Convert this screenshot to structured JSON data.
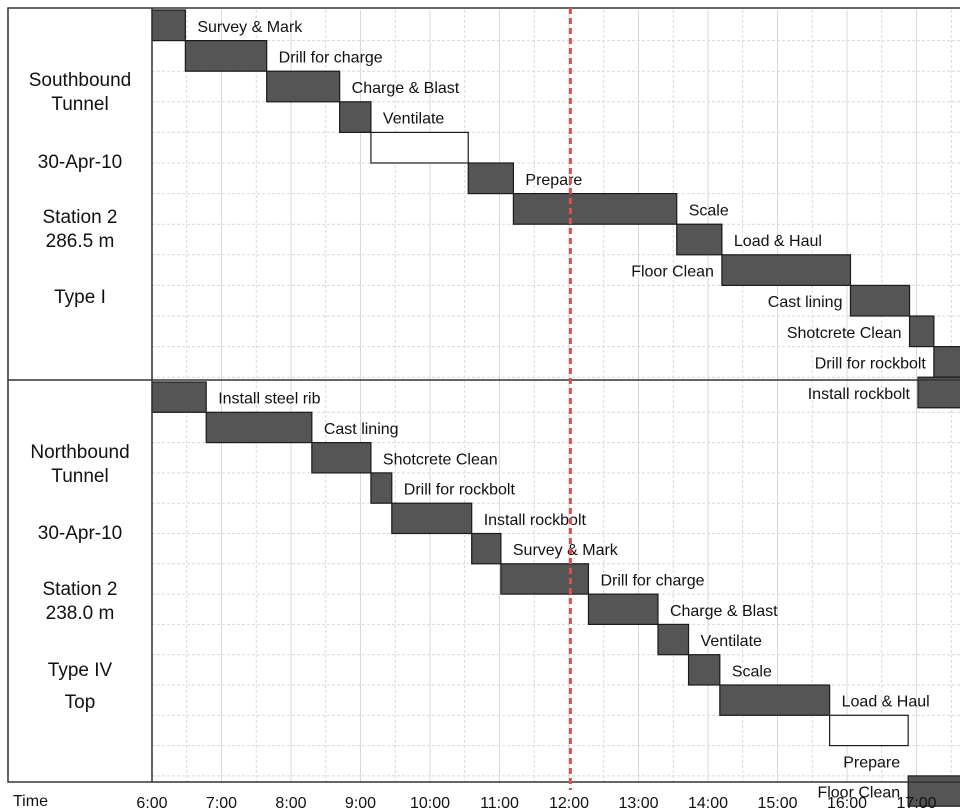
{
  "chart_data": {
    "type": "gantt",
    "x_axis": {
      "label": "Time",
      "ticks": [
        "6:00",
        "7:00",
        "8:00",
        "9:00",
        "10:00",
        "11:00",
        "12:00",
        "13:00",
        "14:00",
        "15:00",
        "16:00",
        "17:00"
      ],
      "range_hours": [
        6.0,
        17.85
      ]
    },
    "current_time_marker": 12.02,
    "colors": {
      "task_fill": "#555555",
      "task_border": "#1a1a1a",
      "idle_fill": "#ffffff",
      "marker": "#d9534f",
      "grid": "#d9d9d9"
    },
    "panels": [
      {
        "info": [
          "Southbound",
          "Tunnel",
          "30-Apr-10",
          "Station 2",
          "286.5 m",
          "Type I"
        ],
        "tasks": [
          {
            "name": "Survey & Mark",
            "start": 6.0,
            "end": 6.48,
            "filled": true
          },
          {
            "name": "Drill for charge",
            "start": 6.48,
            "end": 7.65,
            "filled": true
          },
          {
            "name": "Charge & Blast",
            "start": 7.65,
            "end": 8.7,
            "filled": true
          },
          {
            "name": "Ventilate",
            "start": 8.7,
            "end": 9.15,
            "filled": true
          },
          {
            "name": "",
            "start": 9.15,
            "end": 10.55,
            "filled": false
          },
          {
            "name": "Prepare",
            "start": 10.55,
            "end": 11.2,
            "filled": true
          },
          {
            "name": "Scale",
            "start": 11.2,
            "end": 13.55,
            "filled": true
          },
          {
            "name": "Load & Haul",
            "start": 13.55,
            "end": 14.2,
            "filled": true
          },
          {
            "name": "Floor Clean",
            "start": 14.2,
            "end": 16.05,
            "filled": true
          },
          {
            "name": "Cast lining",
            "start": 16.05,
            "end": 16.9,
            "filled": true
          },
          {
            "name": "Shotcrete Clean",
            "start": 16.9,
            "end": 17.25,
            "filled": true
          },
          {
            "name": "Drill for rockbolt",
            "start": 17.25,
            "end": 17.85,
            "filled": true
          },
          {
            "name": "Install rockbolt",
            "start": 17.85,
            "end": 17.85,
            "filled": true
          }
        ]
      },
      {
        "info": [
          "Northbound",
          "Tunnel",
          "30-Apr-10",
          "Station 2",
          "238.0 m",
          "Type IV",
          "Top"
        ],
        "tasks": [
          {
            "name": "Install steel rib",
            "start": 6.0,
            "end": 6.78,
            "filled": true
          },
          {
            "name": "Cast lining",
            "start": 6.78,
            "end": 8.3,
            "filled": true
          },
          {
            "name": "Shotcrete Clean",
            "start": 8.3,
            "end": 9.15,
            "filled": true
          },
          {
            "name": "Drill for rockbolt",
            "start": 9.15,
            "end": 9.45,
            "filled": true
          },
          {
            "name": "Install rockbolt",
            "start": 9.45,
            "end": 10.6,
            "filled": true
          },
          {
            "name": "Survey & Mark",
            "start": 10.6,
            "end": 11.02,
            "filled": true
          },
          {
            "name": "Drill for charge",
            "start": 11.02,
            "end": 12.28,
            "filled": true
          },
          {
            "name": "Charge & Blast",
            "start": 12.28,
            "end": 13.28,
            "filled": true
          },
          {
            "name": "Ventilate",
            "start": 13.28,
            "end": 13.72,
            "filled": true
          },
          {
            "name": "Scale",
            "start": 13.72,
            "end": 14.17,
            "filled": true
          },
          {
            "name": "Load & Haul",
            "start": 14.17,
            "end": 15.75,
            "filled": true
          },
          {
            "name": "",
            "start": 15.75,
            "end": 16.88,
            "filled": false
          },
          {
            "name": "Prepare",
            "start": 16.88,
            "end": 16.88,
            "filled": true
          },
          {
            "name": "Floor Clean",
            "start": 16.88,
            "end": 17.85,
            "filled": true
          }
        ]
      }
    ]
  }
}
